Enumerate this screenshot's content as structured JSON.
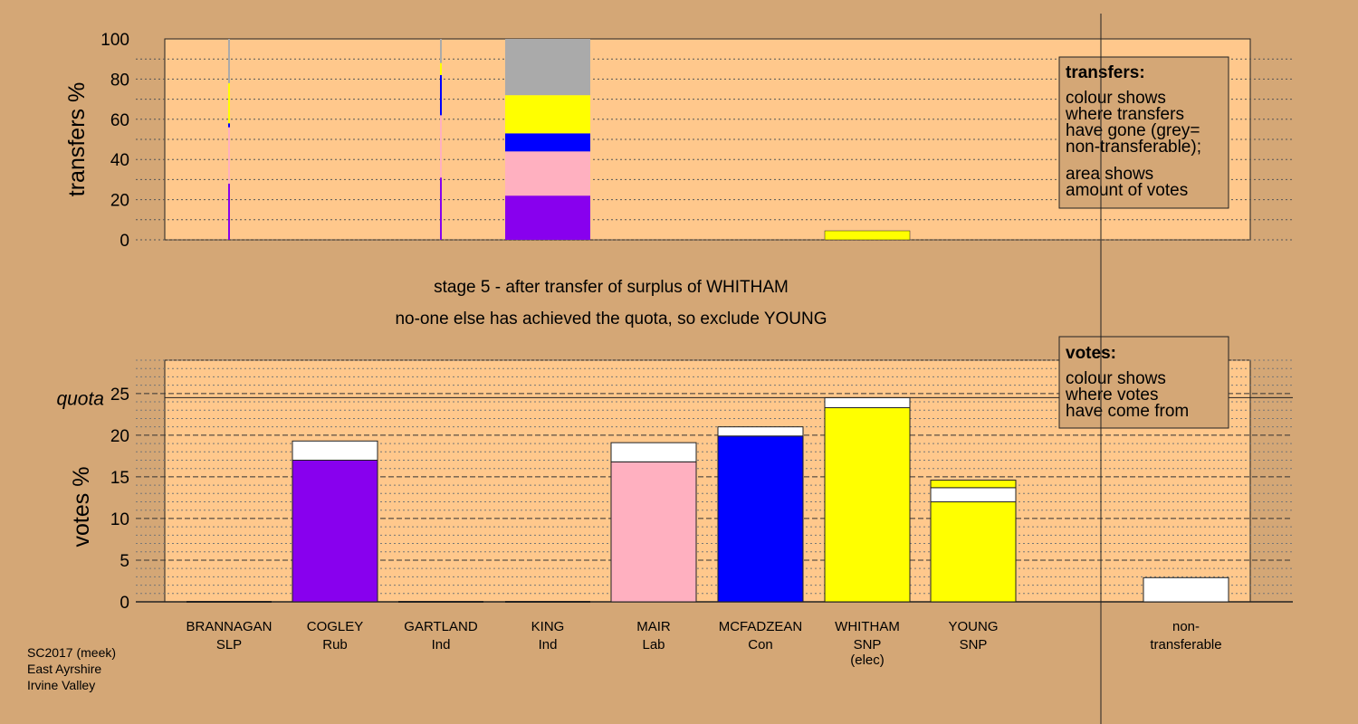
{
  "colors": {
    "background": "#d4a776",
    "plot_bg": "#ffc88c",
    "Rub": "#8800ee",
    "Lab": "#ffb0c0",
    "Con": "#0000ff",
    "SNP": "#ffff00",
    "nontransferable": "#aaaaaa",
    "white": "#ffffff"
  },
  "chart_data": [
    {
      "type": "bar",
      "name": "transfers",
      "ylabel": "transfers %",
      "ylim": [
        0,
        100
      ],
      "yticks": [
        0,
        20,
        40,
        60,
        80,
        100
      ],
      "grid": true,
      "legend_box": {
        "title": "transfers:",
        "lines": [
          "colour shows",
          "where transfers",
          "have gone (grey=",
          "non-transferable);",
          "area shows",
          "amount of votes"
        ]
      },
      "columns": [
        {
          "candidate": "BRANNAGAN",
          "thin": true,
          "segments": [
            {
              "from": 0,
              "to": 28,
              "color": "Rub"
            },
            {
              "from": 28,
              "to": 56,
              "color": "Lab"
            },
            {
              "from": 56,
              "to": 58,
              "color": "Con"
            },
            {
              "from": 58,
              "to": 78,
              "color": "SNP"
            },
            {
              "from": 78,
              "to": 100,
              "color": "nontransferable"
            }
          ]
        },
        {
          "candidate": "GARTLAND",
          "thin": true,
          "segments": [
            {
              "from": 0,
              "to": 31,
              "color": "Rub"
            },
            {
              "from": 31,
              "to": 62,
              "color": "Lab"
            },
            {
              "from": 62,
              "to": 82,
              "color": "Con"
            },
            {
              "from": 82,
              "to": 88,
              "color": "SNP"
            },
            {
              "from": 88,
              "to": 100,
              "color": "nontransferable"
            }
          ]
        },
        {
          "candidate": "KING",
          "thin": false,
          "segments": [
            {
              "from": 0,
              "to": 22,
              "color": "Rub"
            },
            {
              "from": 22,
              "to": 44,
              "color": "Lab"
            },
            {
              "from": 44,
              "to": 53,
              "color": "Con"
            },
            {
              "from": 53,
              "to": 72,
              "color": "SNP"
            },
            {
              "from": 72,
              "to": 100,
              "color": "nontransferable"
            }
          ]
        },
        {
          "candidate": "WHITHAM",
          "thin": false,
          "segments": [
            {
              "from": 0,
              "to": 4.5,
              "color": "SNP"
            }
          ]
        }
      ]
    },
    {
      "type": "bar",
      "name": "votes",
      "ylabel": "votes %",
      "ylim": [
        0,
        29
      ],
      "yticks": [
        0,
        5,
        10,
        15,
        20,
        25
      ],
      "grid": true,
      "quota": 24.5,
      "quota_label": "quota",
      "legend_box": {
        "title": "votes:",
        "lines": [
          "colour shows",
          "where votes",
          "have come from"
        ]
      },
      "candidates": [
        {
          "name": "BRANNAGAN",
          "party": "SLP",
          "note": "",
          "first": 0,
          "transferred": 0,
          "color": "nontransferable"
        },
        {
          "name": "COGLEY",
          "party": "Rub",
          "note": "",
          "first": 17.0,
          "transferred": 2.3,
          "color": "Rub"
        },
        {
          "name": "GARTLAND",
          "party": "Ind",
          "note": "",
          "first": 0,
          "transferred": 0,
          "color": "nontransferable"
        },
        {
          "name": "KING",
          "party": "Ind",
          "note": "",
          "first": 0,
          "transferred": 0,
          "color": "nontransferable"
        },
        {
          "name": "MAIR",
          "party": "Lab",
          "note": "",
          "first": 16.8,
          "transferred": 2.3,
          "color": "Lab"
        },
        {
          "name": "MCFADZEAN",
          "party": "Con",
          "note": "",
          "first": 19.9,
          "transferred": 1.1,
          "color": "Con"
        },
        {
          "name": "WHITHAM",
          "party": "SNP",
          "note": "(elec)",
          "first": 23.3,
          "transferred": 1.2,
          "color": "SNP"
        },
        {
          "name": "YOUNG",
          "party": "SNP",
          "note": "",
          "first": 12.0,
          "transferred": 1.7,
          "color": "SNP",
          "extra_top": 0.9
        }
      ],
      "nontransferable": {
        "label_line1": "non-",
        "label_line2": "transferable",
        "value": 2.9
      }
    }
  ],
  "stage_text": {
    "line1": "stage 5 - after transfer of surplus of WHITHAM",
    "line2": "no-one else has achieved the quota, so exclude YOUNG"
  },
  "footer": {
    "line1": "SC2017 (meek)",
    "line2": "East Ayrshire",
    "line3": "Irvine Valley"
  }
}
